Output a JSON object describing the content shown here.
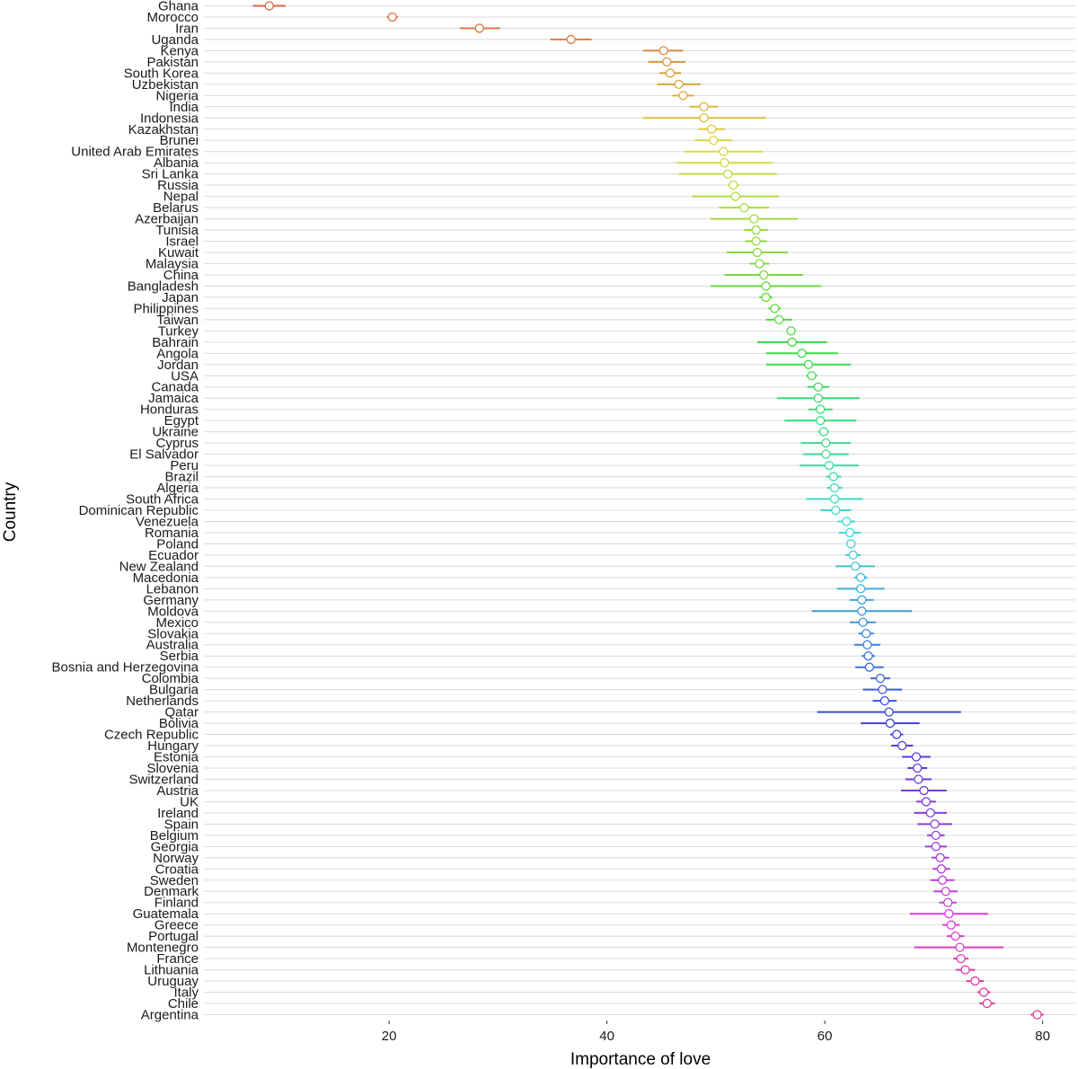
{
  "chart_data": {
    "type": "scatter",
    "subtype": "point-with-error-bars",
    "xlabel": "Importance of love",
    "ylabel": "Country",
    "xlim": [
      3,
      83
    ],
    "x_ticks": [
      20,
      40,
      60,
      80
    ],
    "grid": "horizontal",
    "legend": "none",
    "countries": [
      {
        "name": "Ghana",
        "value": 9.0,
        "low": 7.5,
        "high": 10.5
      },
      {
        "name": "Morocco",
        "value": 20.3,
        "low": 19.8,
        "high": 20.8
      },
      {
        "name": "Iran",
        "value": 28.3,
        "low": 26.5,
        "high": 30.2
      },
      {
        "name": "Uganda",
        "value": 36.7,
        "low": 34.8,
        "high": 38.6
      },
      {
        "name": "Kenya",
        "value": 45.2,
        "low": 43.3,
        "high": 47.0
      },
      {
        "name": "Pakistan",
        "value": 45.5,
        "low": 43.8,
        "high": 47.2
      },
      {
        "name": "South Korea",
        "value": 45.8,
        "low": 44.8,
        "high": 46.8
      },
      {
        "name": "Uzbekistan",
        "value": 46.6,
        "low": 44.6,
        "high": 48.6
      },
      {
        "name": "Nigeria",
        "value": 47.0,
        "low": 46.0,
        "high": 48.0
      },
      {
        "name": "India",
        "value": 48.9,
        "low": 47.6,
        "high": 50.2
      },
      {
        "name": "Indonesia",
        "value": 48.9,
        "low": 43.3,
        "high": 54.6
      },
      {
        "name": "Kazakhstan",
        "value": 49.6,
        "low": 48.4,
        "high": 50.8
      },
      {
        "name": "Brunei",
        "value": 49.8,
        "low": 48.1,
        "high": 51.5
      },
      {
        "name": "United Arab Emirates",
        "value": 50.7,
        "low": 47.1,
        "high": 54.3
      },
      {
        "name": "Albania",
        "value": 50.8,
        "low": 46.4,
        "high": 55.2
      },
      {
        "name": "Sri Lanka",
        "value": 51.1,
        "low": 46.6,
        "high": 55.6
      },
      {
        "name": "Russia",
        "value": 51.6,
        "low": 51.1,
        "high": 52.1
      },
      {
        "name": "Nepal",
        "value": 51.8,
        "low": 47.8,
        "high": 55.8
      },
      {
        "name": "Belarus",
        "value": 52.6,
        "low": 50.3,
        "high": 54.9
      },
      {
        "name": "Azerbaijan",
        "value": 53.5,
        "low": 49.5,
        "high": 57.5
      },
      {
        "name": "Tunisia",
        "value": 53.7,
        "low": 52.6,
        "high": 54.8
      },
      {
        "name": "Israel",
        "value": 53.7,
        "low": 52.7,
        "high": 54.7
      },
      {
        "name": "Kuwait",
        "value": 53.8,
        "low": 51.0,
        "high": 56.6
      },
      {
        "name": "Malaysia",
        "value": 54.0,
        "low": 53.1,
        "high": 54.9
      },
      {
        "name": "China",
        "value": 54.4,
        "low": 50.8,
        "high": 58.0
      },
      {
        "name": "Bangladesh",
        "value": 54.6,
        "low": 49.5,
        "high": 59.7
      },
      {
        "name": "Japan",
        "value": 54.6,
        "low": 54.0,
        "high": 55.2
      },
      {
        "name": "Philippines",
        "value": 55.4,
        "low": 54.8,
        "high": 56.0
      },
      {
        "name": "Taiwan",
        "value": 55.8,
        "low": 54.6,
        "high": 57.0
      },
      {
        "name": "Turkey",
        "value": 56.9,
        "low": 56.5,
        "high": 57.3
      },
      {
        "name": "Bahrain",
        "value": 57.0,
        "low": 53.8,
        "high": 60.2
      },
      {
        "name": "Angola",
        "value": 57.9,
        "low": 54.6,
        "high": 61.2
      },
      {
        "name": "Jordan",
        "value": 58.5,
        "low": 54.6,
        "high": 62.4
      },
      {
        "name": "USA",
        "value": 58.8,
        "low": 58.3,
        "high": 59.3
      },
      {
        "name": "Canada",
        "value": 59.4,
        "low": 58.4,
        "high": 60.4
      },
      {
        "name": "Jamaica",
        "value": 59.4,
        "low": 55.6,
        "high": 63.2
      },
      {
        "name": "Honduras",
        "value": 59.6,
        "low": 58.5,
        "high": 60.7
      },
      {
        "name": "Egypt",
        "value": 59.6,
        "low": 56.3,
        "high": 62.9
      },
      {
        "name": "Ukraine",
        "value": 59.9,
        "low": 59.4,
        "high": 60.4
      },
      {
        "name": "Cyprus",
        "value": 60.1,
        "low": 57.8,
        "high": 62.4
      },
      {
        "name": "El Salvador",
        "value": 60.1,
        "low": 58.0,
        "high": 62.2
      },
      {
        "name": "Peru",
        "value": 60.4,
        "low": 57.7,
        "high": 63.1
      },
      {
        "name": "Brazil",
        "value": 60.8,
        "low": 60.1,
        "high": 61.5
      },
      {
        "name": "Algeria",
        "value": 60.9,
        "low": 60.2,
        "high": 61.6
      },
      {
        "name": "South Africa",
        "value": 60.9,
        "low": 58.3,
        "high": 63.5
      },
      {
        "name": "Dominican Republic",
        "value": 61.0,
        "low": 59.6,
        "high": 62.4
      },
      {
        "name": "Venezuela",
        "value": 62.0,
        "low": 61.2,
        "high": 62.8
      },
      {
        "name": "Romania",
        "value": 62.3,
        "low": 61.3,
        "high": 63.3
      },
      {
        "name": "Poland",
        "value": 62.4,
        "low": 62.0,
        "high": 62.8
      },
      {
        "name": "Ecuador",
        "value": 62.6,
        "low": 61.9,
        "high": 63.3
      },
      {
        "name": "New Zealand",
        "value": 62.8,
        "low": 61.0,
        "high": 64.6
      },
      {
        "name": "Macedonia",
        "value": 63.3,
        "low": 62.7,
        "high": 63.9
      },
      {
        "name": "Lebanon",
        "value": 63.3,
        "low": 61.1,
        "high": 65.5
      },
      {
        "name": "Germany",
        "value": 63.4,
        "low": 62.3,
        "high": 64.5
      },
      {
        "name": "Moldova",
        "value": 63.4,
        "low": 58.8,
        "high": 68.0
      },
      {
        "name": "Mexico",
        "value": 63.5,
        "low": 62.3,
        "high": 64.7
      },
      {
        "name": "Slovakia",
        "value": 63.8,
        "low": 63.1,
        "high": 64.5
      },
      {
        "name": "Australia",
        "value": 63.9,
        "low": 62.7,
        "high": 65.1
      },
      {
        "name": "Serbia",
        "value": 64.0,
        "low": 63.4,
        "high": 64.6
      },
      {
        "name": "Bosnia and Herzegovina",
        "value": 64.1,
        "low": 62.8,
        "high": 65.4
      },
      {
        "name": "Colombia",
        "value": 65.1,
        "low": 64.2,
        "high": 66.0
      },
      {
        "name": "Bulgaria",
        "value": 65.3,
        "low": 63.5,
        "high": 67.1
      },
      {
        "name": "Netherlands",
        "value": 65.5,
        "low": 64.4,
        "high": 66.6
      },
      {
        "name": "Qatar",
        "value": 65.9,
        "low": 59.3,
        "high": 72.5
      },
      {
        "name": "Bolivia",
        "value": 66.0,
        "low": 63.3,
        "high": 68.7
      },
      {
        "name": "Czech Republic",
        "value": 66.6,
        "low": 66.0,
        "high": 67.2
      },
      {
        "name": "Hungary",
        "value": 67.1,
        "low": 66.1,
        "high": 68.1
      },
      {
        "name": "Estonia",
        "value": 68.4,
        "low": 67.1,
        "high": 69.7
      },
      {
        "name": "Slovenia",
        "value": 68.5,
        "low": 67.6,
        "high": 69.4
      },
      {
        "name": "Switzerland",
        "value": 68.6,
        "low": 67.4,
        "high": 69.8
      },
      {
        "name": "Austria",
        "value": 69.1,
        "low": 67.0,
        "high": 71.2
      },
      {
        "name": "UK",
        "value": 69.3,
        "low": 68.4,
        "high": 70.2
      },
      {
        "name": "Ireland",
        "value": 69.7,
        "low": 68.2,
        "high": 71.2
      },
      {
        "name": "Spain",
        "value": 70.1,
        "low": 68.5,
        "high": 71.7
      },
      {
        "name": "Belgium",
        "value": 70.2,
        "low": 69.4,
        "high": 71.0
      },
      {
        "name": "Georgia",
        "value": 70.2,
        "low": 69.2,
        "high": 71.2
      },
      {
        "name": "Norway",
        "value": 70.6,
        "low": 69.8,
        "high": 71.4
      },
      {
        "name": "Croatia",
        "value": 70.7,
        "low": 69.9,
        "high": 71.5
      },
      {
        "name": "Sweden",
        "value": 70.8,
        "low": 69.7,
        "high": 71.9
      },
      {
        "name": "Denmark",
        "value": 71.1,
        "low": 70.0,
        "high": 72.2
      },
      {
        "name": "Finland",
        "value": 71.3,
        "low": 70.5,
        "high": 72.1
      },
      {
        "name": "Guatemala",
        "value": 71.4,
        "low": 67.8,
        "high": 75.0
      },
      {
        "name": "Greece",
        "value": 71.6,
        "low": 70.8,
        "high": 72.4
      },
      {
        "name": "Portugal",
        "value": 72.0,
        "low": 71.2,
        "high": 72.8
      },
      {
        "name": "Montenegro",
        "value": 72.4,
        "low": 68.2,
        "high": 76.4
      },
      {
        "name": "France",
        "value": 72.5,
        "low": 71.8,
        "high": 73.2
      },
      {
        "name": "Lithuania",
        "value": 72.9,
        "low": 72.0,
        "high": 73.8
      },
      {
        "name": "Uruguay",
        "value": 73.8,
        "low": 73.0,
        "high": 74.6
      },
      {
        "name": "Italy",
        "value": 74.6,
        "low": 74.0,
        "high": 75.2
      },
      {
        "name": "Chile",
        "value": 74.9,
        "low": 74.2,
        "high": 75.6
      },
      {
        "name": "Argentina",
        "value": 79.5,
        "low": 78.9,
        "high": 80.1
      }
    ]
  }
}
